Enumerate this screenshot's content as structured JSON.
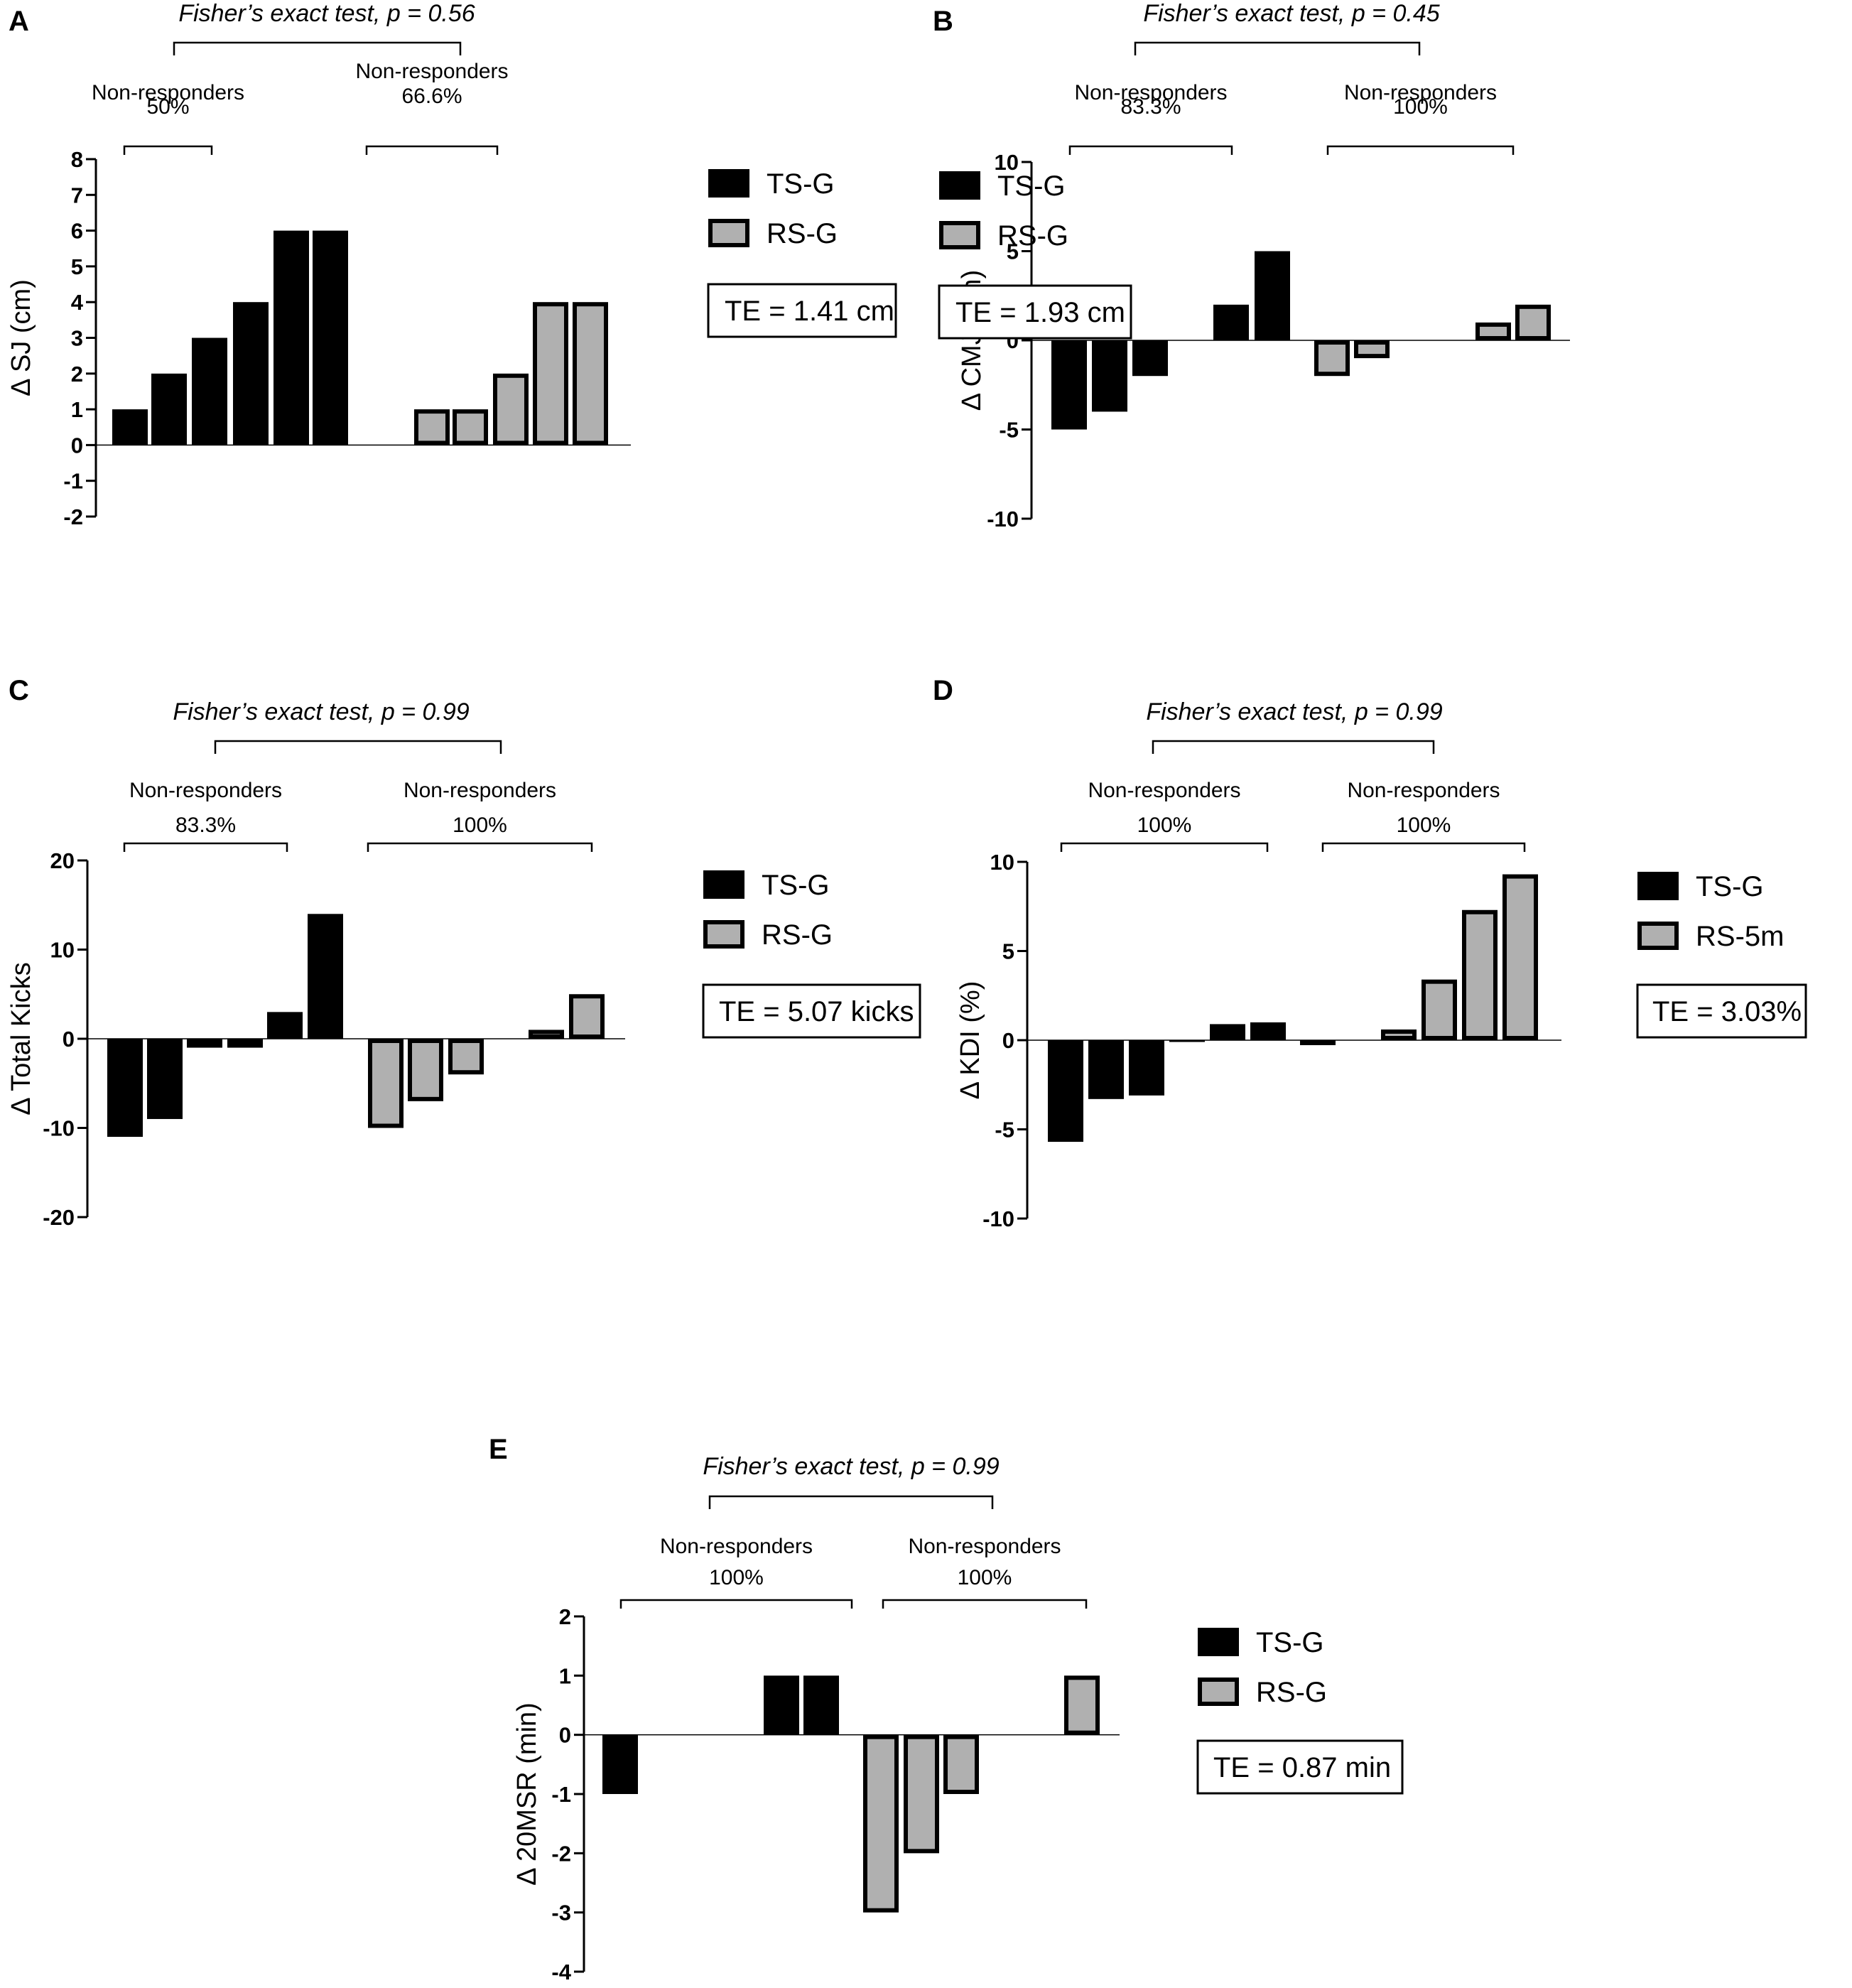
{
  "figure": {
    "colors": {
      "ts": "#000000",
      "rs": "#b0b0b0",
      "rs_stroke": "#000000"
    },
    "legend_icons": [
      "black-filled-square-icon",
      "gray-outlined-square-icon"
    ]
  },
  "chart_data": [
    {
      "id": "A",
      "type": "bar",
      "panel_letter": "A",
      "title": "Fisher’s exact test, p = 0.56",
      "ylabel": "Δ SJ (cm)",
      "ylim": [
        -2,
        8
      ],
      "yticks": [
        -2,
        -1,
        0,
        1,
        2,
        3,
        4,
        5,
        6,
        7,
        8
      ],
      "series": [
        {
          "name": "TS-G",
          "values": [
            1,
            2,
            3,
            4,
            6,
            6
          ]
        },
        {
          "name": "RS-G",
          "values": [
            1,
            1,
            2,
            4,
            4
          ]
        }
      ],
      "groups": [
        {
          "label": "Non-responders",
          "percent": "50%"
        },
        {
          "label": "Non-responders",
          "percent": "66.6%"
        }
      ],
      "legend": [
        "TS-G",
        "RS-G"
      ],
      "te": "TE = 1.41 cm"
    },
    {
      "id": "B",
      "type": "bar",
      "panel_letter": "B",
      "title": "Fisher’s exact test, p = 0.45",
      "ylabel": "Δ CMJ (cm)",
      "ylim": [
        -10,
        10
      ],
      "yticks": [
        -10,
        -5,
        0,
        5,
        10
      ],
      "series": [
        {
          "name": "TS-G",
          "values": [
            -5,
            -4,
            -2,
            0,
            2,
            5
          ]
        },
        {
          "name": "RS-G",
          "values": [
            -2,
            -1,
            0,
            0,
            1,
            2
          ]
        }
      ],
      "groups": [
        {
          "label": "Non-responders",
          "percent": "83.3%"
        },
        {
          "label": "Non-responders",
          "percent": "100%"
        }
      ],
      "legend": [
        "TS-G",
        "RS-G"
      ],
      "te": "TE = 1.93 cm"
    },
    {
      "id": "C",
      "type": "bar",
      "panel_letter": "C",
      "title": "Fisher’s exact test, p = 0.99",
      "ylabel": "Δ Total Kicks",
      "ylim": [
        -20,
        20
      ],
      "yticks": [
        -20,
        -10,
        0,
        10,
        20
      ],
      "series": [
        {
          "name": "TS-G",
          "values": [
            -11,
            -9,
            -1,
            -1,
            3,
            14
          ]
        },
        {
          "name": "RS-G",
          "values": [
            -10,
            -7,
            -4,
            0,
            1,
            5
          ]
        }
      ],
      "groups": [
        {
          "label": "Non-responders",
          "percent": "83.3%"
        },
        {
          "label": "Non-responders",
          "percent": "100%"
        }
      ],
      "legend": [
        "TS-G",
        "RS-G"
      ],
      "te": "TE = 5.07 kicks"
    },
    {
      "id": "D",
      "type": "bar",
      "panel_letter": "D",
      "title": "Fisher’s exact test, p = 0.99",
      "ylabel": "Δ KDI (%)",
      "ylim": [
        -10,
        10
      ],
      "yticks": [
        -10,
        -5,
        0,
        5,
        10
      ],
      "series": [
        {
          "name": "TS-G",
          "values": [
            -5.7,
            -3.3,
            -3.1,
            -0.1,
            0.9,
            1.0
          ]
        },
        {
          "name": "RS-5m",
          "values": [
            -0.1,
            0,
            0.6,
            3.4,
            7.3,
            9.3
          ]
        }
      ],
      "groups": [
        {
          "label": "Non-responders",
          "percent": "100%"
        },
        {
          "label": "Non-responders",
          "percent": "100%"
        }
      ],
      "legend": [
        "TS-G",
        "RS-5m"
      ],
      "te": "TE = 3.03%"
    },
    {
      "id": "E",
      "type": "bar",
      "panel_letter": "E",
      "title": "Fisher’s exact test, p = 0.99",
      "ylabel": "Δ 20MSR (min)",
      "ylim": [
        -4,
        2
      ],
      "yticks": [
        -4,
        -3,
        -2,
        -1,
        0,
        1,
        2
      ],
      "series": [
        {
          "name": "TS-G",
          "values": [
            -1,
            0,
            0,
            0,
            1,
            1
          ]
        },
        {
          "name": "RS-G",
          "values": [
            -3,
            -2,
            -1,
            0,
            0,
            1
          ]
        }
      ],
      "groups": [
        {
          "label": "Non-responders",
          "percent": "100%"
        },
        {
          "label": "Non-responders",
          "percent": "100%"
        }
      ],
      "legend": [
        "TS-G",
        "RS-G"
      ],
      "te": "TE = 0.87 min"
    }
  ]
}
